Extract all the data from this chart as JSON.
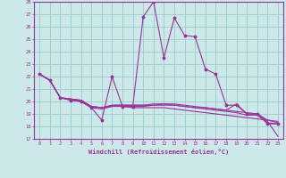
{
  "xlabel": "Windchill (Refroidissement éolien,°C)",
  "bg_color": "#cce8e8",
  "line_color": "#993399",
  "grid_color": "#99cccc",
  "xlim": [
    -0.5,
    23.5
  ],
  "ylim": [
    17,
    28
  ],
  "xticks": [
    0,
    1,
    2,
    3,
    4,
    5,
    6,
    7,
    8,
    9,
    10,
    11,
    12,
    13,
    14,
    15,
    16,
    17,
    18,
    19,
    20,
    21,
    22,
    23
  ],
  "yticks": [
    17,
    18,
    19,
    20,
    21,
    22,
    23,
    24,
    25,
    26,
    27,
    28
  ],
  "line_main": [
    22.2,
    21.7,
    20.3,
    20.1,
    20.0,
    19.5,
    18.5,
    22.0,
    19.6,
    19.6,
    26.8,
    28.0,
    23.5,
    26.7,
    25.3,
    25.2,
    22.6,
    22.2,
    19.7,
    19.7,
    19.0,
    19.0,
    18.2,
    18.2
  ],
  "line_flat1": [
    22.2,
    21.7,
    20.3,
    20.1,
    20.0,
    19.5,
    19.4,
    19.6,
    19.6,
    19.5,
    19.5,
    19.5,
    19.5,
    19.4,
    19.3,
    19.2,
    19.1,
    19.0,
    18.9,
    18.8,
    18.7,
    18.6,
    18.5,
    18.4
  ],
  "line_flat2": [
    22.2,
    21.7,
    20.3,
    20.2,
    20.0,
    19.6,
    19.5,
    19.6,
    19.7,
    19.6,
    19.6,
    19.7,
    19.7,
    19.7,
    19.6,
    19.5,
    19.5,
    19.4,
    19.3,
    19.8,
    19.0,
    19.0,
    18.4,
    17.2
  ],
  "line_flat3": [
    22.2,
    21.7,
    20.3,
    20.2,
    20.1,
    19.6,
    19.5,
    19.7,
    19.7,
    19.7,
    19.7,
    19.7,
    19.8,
    19.7,
    19.6,
    19.5,
    19.4,
    19.3,
    19.2,
    19.1,
    18.9,
    18.9,
    18.3,
    18.2
  ],
  "line_flat4": [
    22.2,
    21.7,
    20.3,
    20.2,
    20.1,
    19.6,
    19.5,
    19.7,
    19.7,
    19.7,
    19.7,
    19.8,
    19.8,
    19.8,
    19.7,
    19.6,
    19.5,
    19.4,
    19.3,
    19.2,
    19.1,
    19.0,
    18.5,
    18.3
  ]
}
